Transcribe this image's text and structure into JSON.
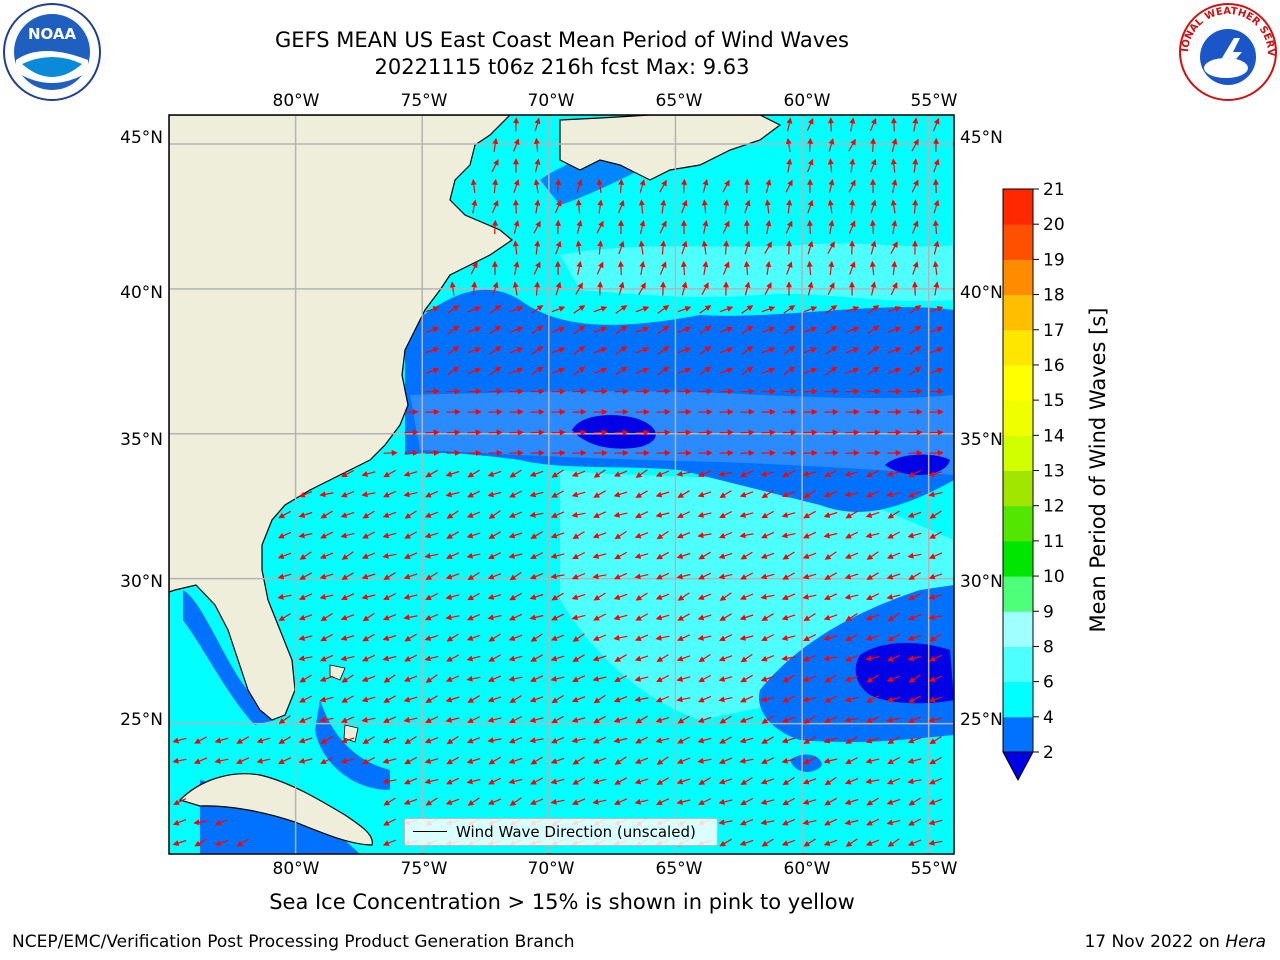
{
  "header": {
    "title_line1": "GEFS MEAN US East Coast Mean Period of Wind Waves",
    "title_line2": "20221115 t06z 216h fcst   Max: 9.63"
  },
  "logos": {
    "left": "NOAA",
    "right": "NATIONAL WEATHER SERVICE"
  },
  "map": {
    "lon_ticks": [
      "80°W",
      "75°W",
      "70°W",
      "65°W",
      "60°W",
      "55°W"
    ],
    "lat_ticks": [
      "45°N",
      "40°N",
      "35°N",
      "30°N",
      "25°N"
    ],
    "lon_range": [
      -85,
      -54
    ],
    "lat_range": [
      20.5,
      46
    ],
    "colors": {
      "land": "#efeedb",
      "ocean_default": "#00ffff",
      "grid": "#b4b4b4",
      "arrow": "#ff0000"
    },
    "legend_label": "Wind Wave Direction (unscaled)"
  },
  "colorbar": {
    "title": "Mean Period of Wind Waves [s]",
    "ticks": [
      "2",
      "4",
      "6",
      "8",
      "9",
      "10",
      "11",
      "12",
      "13",
      "14",
      "15",
      "16",
      "17",
      "18",
      "19",
      "20",
      "21"
    ],
    "colors": [
      "#0072ff",
      "#00ffff",
      "#4effff",
      "#a0ffff",
      "#4eff7a",
      "#00e600",
      "#52e600",
      "#a0e600",
      "#d2ff00",
      "#f0ff00",
      "#ffff00",
      "#ffe600",
      "#ffbe00",
      "#ff8c00",
      "#ff5000",
      "#ff2800",
      "#ff0000"
    ],
    "under_color": "#0000e6"
  },
  "footer": {
    "subtitle": "Sea Ice Concentration > 15% is shown in pink to yellow",
    "left": "NCEP/EMC/Verification Post Processing Product Generation Branch",
    "right_date": "17 Nov 2022 on",
    "right_host": "Hera"
  }
}
